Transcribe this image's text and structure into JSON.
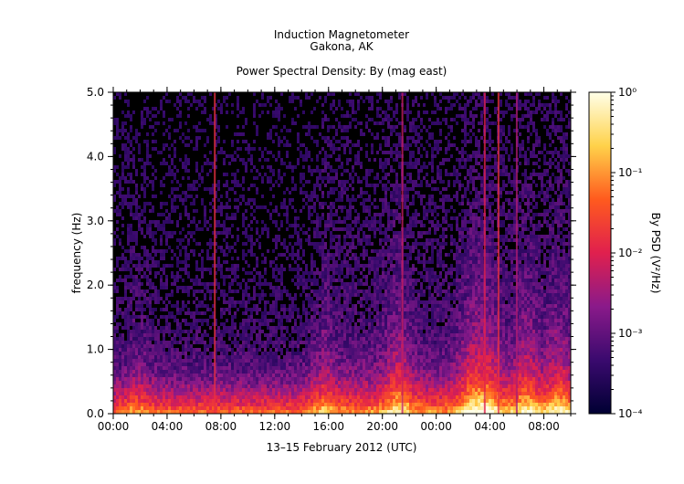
{
  "chart_data": {
    "type": "heatmap",
    "title": "Induction Magnetometer",
    "subtitle": "Gakona, AK",
    "plot_title": "Power Spectral Density: By (mag east)",
    "xlabel": "13–15 February 2012 (UTC)",
    "ylabel": "frequency (Hz)",
    "x_tick_labels": [
      "00:00",
      "04:00",
      "08:00",
      "12:00",
      "16:00",
      "20:00",
      "00:00",
      "04:00",
      "08:00"
    ],
    "y_tick_labels": [
      "0.0",
      "1.0",
      "2.0",
      "3.0",
      "4.0",
      "5.0"
    ],
    "ylim": [
      0,
      5
    ],
    "colorbar": {
      "label": "By PSD (V²/Hz)",
      "scale": "log",
      "range": [
        0.0001,
        1
      ],
      "tick_labels": [
        "10⁻⁴",
        "10⁻³",
        "10⁻²",
        "10⁻¹",
        "10⁰"
      ],
      "colors": [
        "#000033",
        "#3a0a6e",
        "#8a1a8a",
        "#e0204e",
        "#ff5a1e",
        "#ffd24a",
        "#ffffe8"
      ]
    },
    "background_color": "#000000",
    "notable_features": [
      "broadband low-frequency power (0–0.5 Hz) across the interval",
      "strong vertical stripe near 07:30 on day 1",
      "intense broadband bursts after 04:00 on day 2"
    ]
  }
}
